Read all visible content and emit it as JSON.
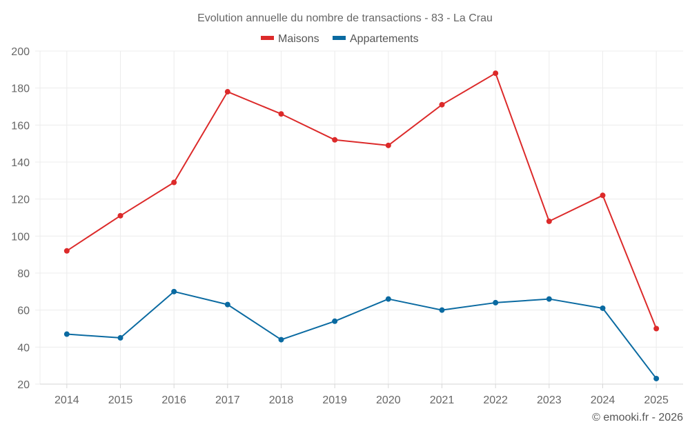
{
  "chart_data": {
    "type": "line",
    "title": "Evolution annuelle du nombre de transactions - 83 - La Crau",
    "xlabel": "",
    "ylabel": "",
    "categories": [
      "2014",
      "2015",
      "2016",
      "2017",
      "2018",
      "2019",
      "2020",
      "2021",
      "2022",
      "2023",
      "2024",
      "2025"
    ],
    "series": [
      {
        "name": "Maisons",
        "color": "#dc2a2a",
        "values": [
          92,
          111,
          129,
          178,
          166,
          152,
          149,
          171,
          188,
          108,
          122,
          50
        ]
      },
      {
        "name": "Appartements",
        "color": "#0a6aa1",
        "values": [
          47,
          45,
          70,
          63,
          44,
          54,
          66,
          60,
          64,
          66,
          61,
          23
        ]
      }
    ],
    "ylim": [
      20,
      200
    ],
    "yticks": [
      20,
      40,
      60,
      80,
      100,
      120,
      140,
      160,
      180,
      200
    ],
    "grid": true,
    "legend_position": "top-center",
    "credit": "© emooki.fr - 2026"
  }
}
